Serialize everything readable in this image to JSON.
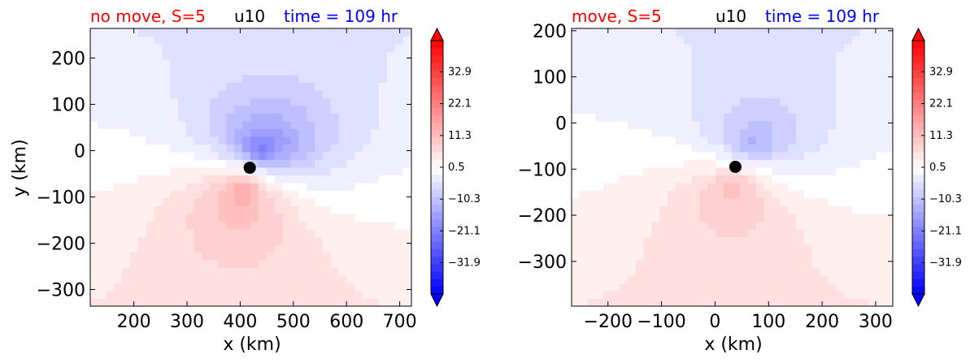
{
  "colors": {
    "negative": "#0000ff",
    "neutral": "#ffffff",
    "positive": "#ff0000",
    "title_left": "#ff0000",
    "title_mid": "#000000",
    "title_right": "#0000ff",
    "center_marker": "#000000"
  },
  "chart_data": [
    {
      "type": "heatmap",
      "title_left": "no move, S=5",
      "title_mid": "u10",
      "title_right": "time = 109 hr",
      "xlabel": "x (km)",
      "ylabel": "y (km)",
      "xlim": [
        118,
        722
      ],
      "ylim": [
        -336,
        264
      ],
      "xticks": [
        200,
        300,
        400,
        500,
        600,
        700
      ],
      "xtick_labels": [
        "200",
        "300",
        "400",
        "500",
        "600",
        "700"
      ],
      "yticks": [
        200,
        100,
        0,
        -100,
        -200,
        -300
      ],
      "ytick_labels": [
        "200",
        "100",
        "0",
        "−100",
        "−200",
        "−300"
      ],
      "center": {
        "x": 418,
        "y": -37
      },
      "colorbar": {
        "range": [
          -42.5,
          43.5
        ],
        "ticks": [
          32.9,
          22.1,
          11.3,
          0.5,
          -10.3,
          -21.1,
          -31.9
        ],
        "tick_labels": [
          "32.9",
          "22.1",
          "11.3",
          "0.5",
          "−10.3",
          "−21.1",
          "−31.9"
        ],
        "extend": "both"
      },
      "features": {
        "min_center": {
          "x": 440,
          "y": -2,
          "value": -40
        },
        "max_center": {
          "x": 410,
          "y": -75,
          "value": 34
        }
      }
    },
    {
      "type": "heatmap",
      "title_left": "move, S=5",
      "title_mid": "u10",
      "title_right": "time = 109 hr",
      "xlabel": "x (km)",
      "ylabel": "",
      "xlim": [
        -268,
        332
      ],
      "ylim": [
        -397,
        205
      ],
      "xticks": [
        -200,
        -100,
        0,
        100,
        200,
        300
      ],
      "xtick_labels": [
        "−200",
        "−100",
        "0",
        "100",
        "200",
        "300"
      ],
      "yticks": [
        200,
        100,
        0,
        -100,
        -200,
        -300
      ],
      "ytick_labels": [
        "200",
        "100",
        "0",
        "−100",
        "−200",
        "−300"
      ],
      "center": {
        "x": 38,
        "y": -95
      },
      "colorbar": {
        "range": [
          -42.5,
          43.5
        ],
        "ticks": [
          32.9,
          22.1,
          11.3,
          0.5,
          -10.3,
          -21.1,
          -31.9
        ],
        "tick_labels": [
          "32.9",
          "22.1",
          "11.3",
          "0.5",
          "−10.3",
          "−21.1",
          "−31.9"
        ],
        "extend": "both"
      },
      "features": {
        "min_center": {
          "x": 70,
          "y": -50,
          "value": -24
        },
        "max_center": {
          "x": 40,
          "y": -130,
          "value": 22
        }
      }
    }
  ]
}
